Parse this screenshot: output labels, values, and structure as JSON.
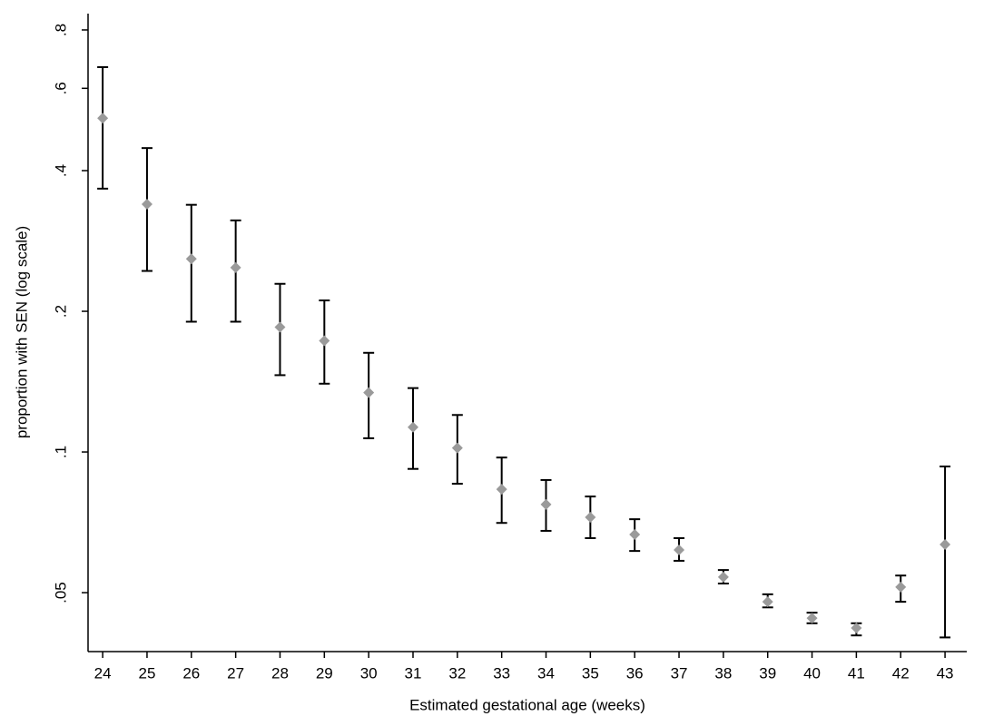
{
  "chart_data": {
    "type": "errorbar",
    "y_label": "proportion with SEN (log scale)",
    "x_label": "Estimated gestational age (weeks)",
    "y_log_scale": true,
    "x": [
      24,
      25,
      26,
      27,
      28,
      29,
      30,
      31,
      32,
      33,
      34,
      35,
      36,
      37,
      38,
      39,
      40,
      41,
      42,
      43
    ],
    "series": [
      {
        "marker_color": "#9a9a9a",
        "error_color": "#000000",
        "values": [
          0.518,
          0.339,
          0.259,
          0.248,
          0.185,
          0.173,
          0.134,
          0.113,
          0.102,
          0.0832,
          0.0772,
          0.0725,
          0.0666,
          0.0617,
          0.054,
          0.0478,
          0.0441,
          0.042,
          0.0514,
          0.0634
        ],
        "lower": [
          0.366,
          0.244,
          0.19,
          0.19,
          0.146,
          0.14,
          0.107,
          0.092,
          0.0855,
          0.0705,
          0.0678,
          0.0654,
          0.0614,
          0.0585,
          0.0523,
          0.0465,
          0.043,
          0.0405,
          0.0478,
          0.0401
        ],
        "upper": [
          0.666,
          0.447,
          0.338,
          0.313,
          0.229,
          0.211,
          0.163,
          0.137,
          0.12,
          0.0973,
          0.0871,
          0.0803,
          0.0718,
          0.0654,
          0.0559,
          0.0496,
          0.0453,
          0.043,
          0.0544,
          0.0931
        ]
      }
    ],
    "xlim": [
      23.67,
      43.49
    ],
    "ylim": [
      0.0374,
      0.867
    ],
    "xticks": [
      24,
      25,
      26,
      27,
      28,
      29,
      30,
      31,
      32,
      33,
      34,
      35,
      36,
      37,
      38,
      39,
      40,
      41,
      42,
      43
    ],
    "yticks": [
      {
        "value": 0.05,
        "label": ".05"
      },
      {
        "value": 0.1,
        "label": ".1"
      },
      {
        "value": 0.2,
        "label": ".2"
      },
      {
        "value": 0.4,
        "label": ".4"
      },
      {
        "value": 0.6,
        "label": ".6"
      },
      {
        "value": 0.8,
        "label": ".8"
      }
    ]
  }
}
